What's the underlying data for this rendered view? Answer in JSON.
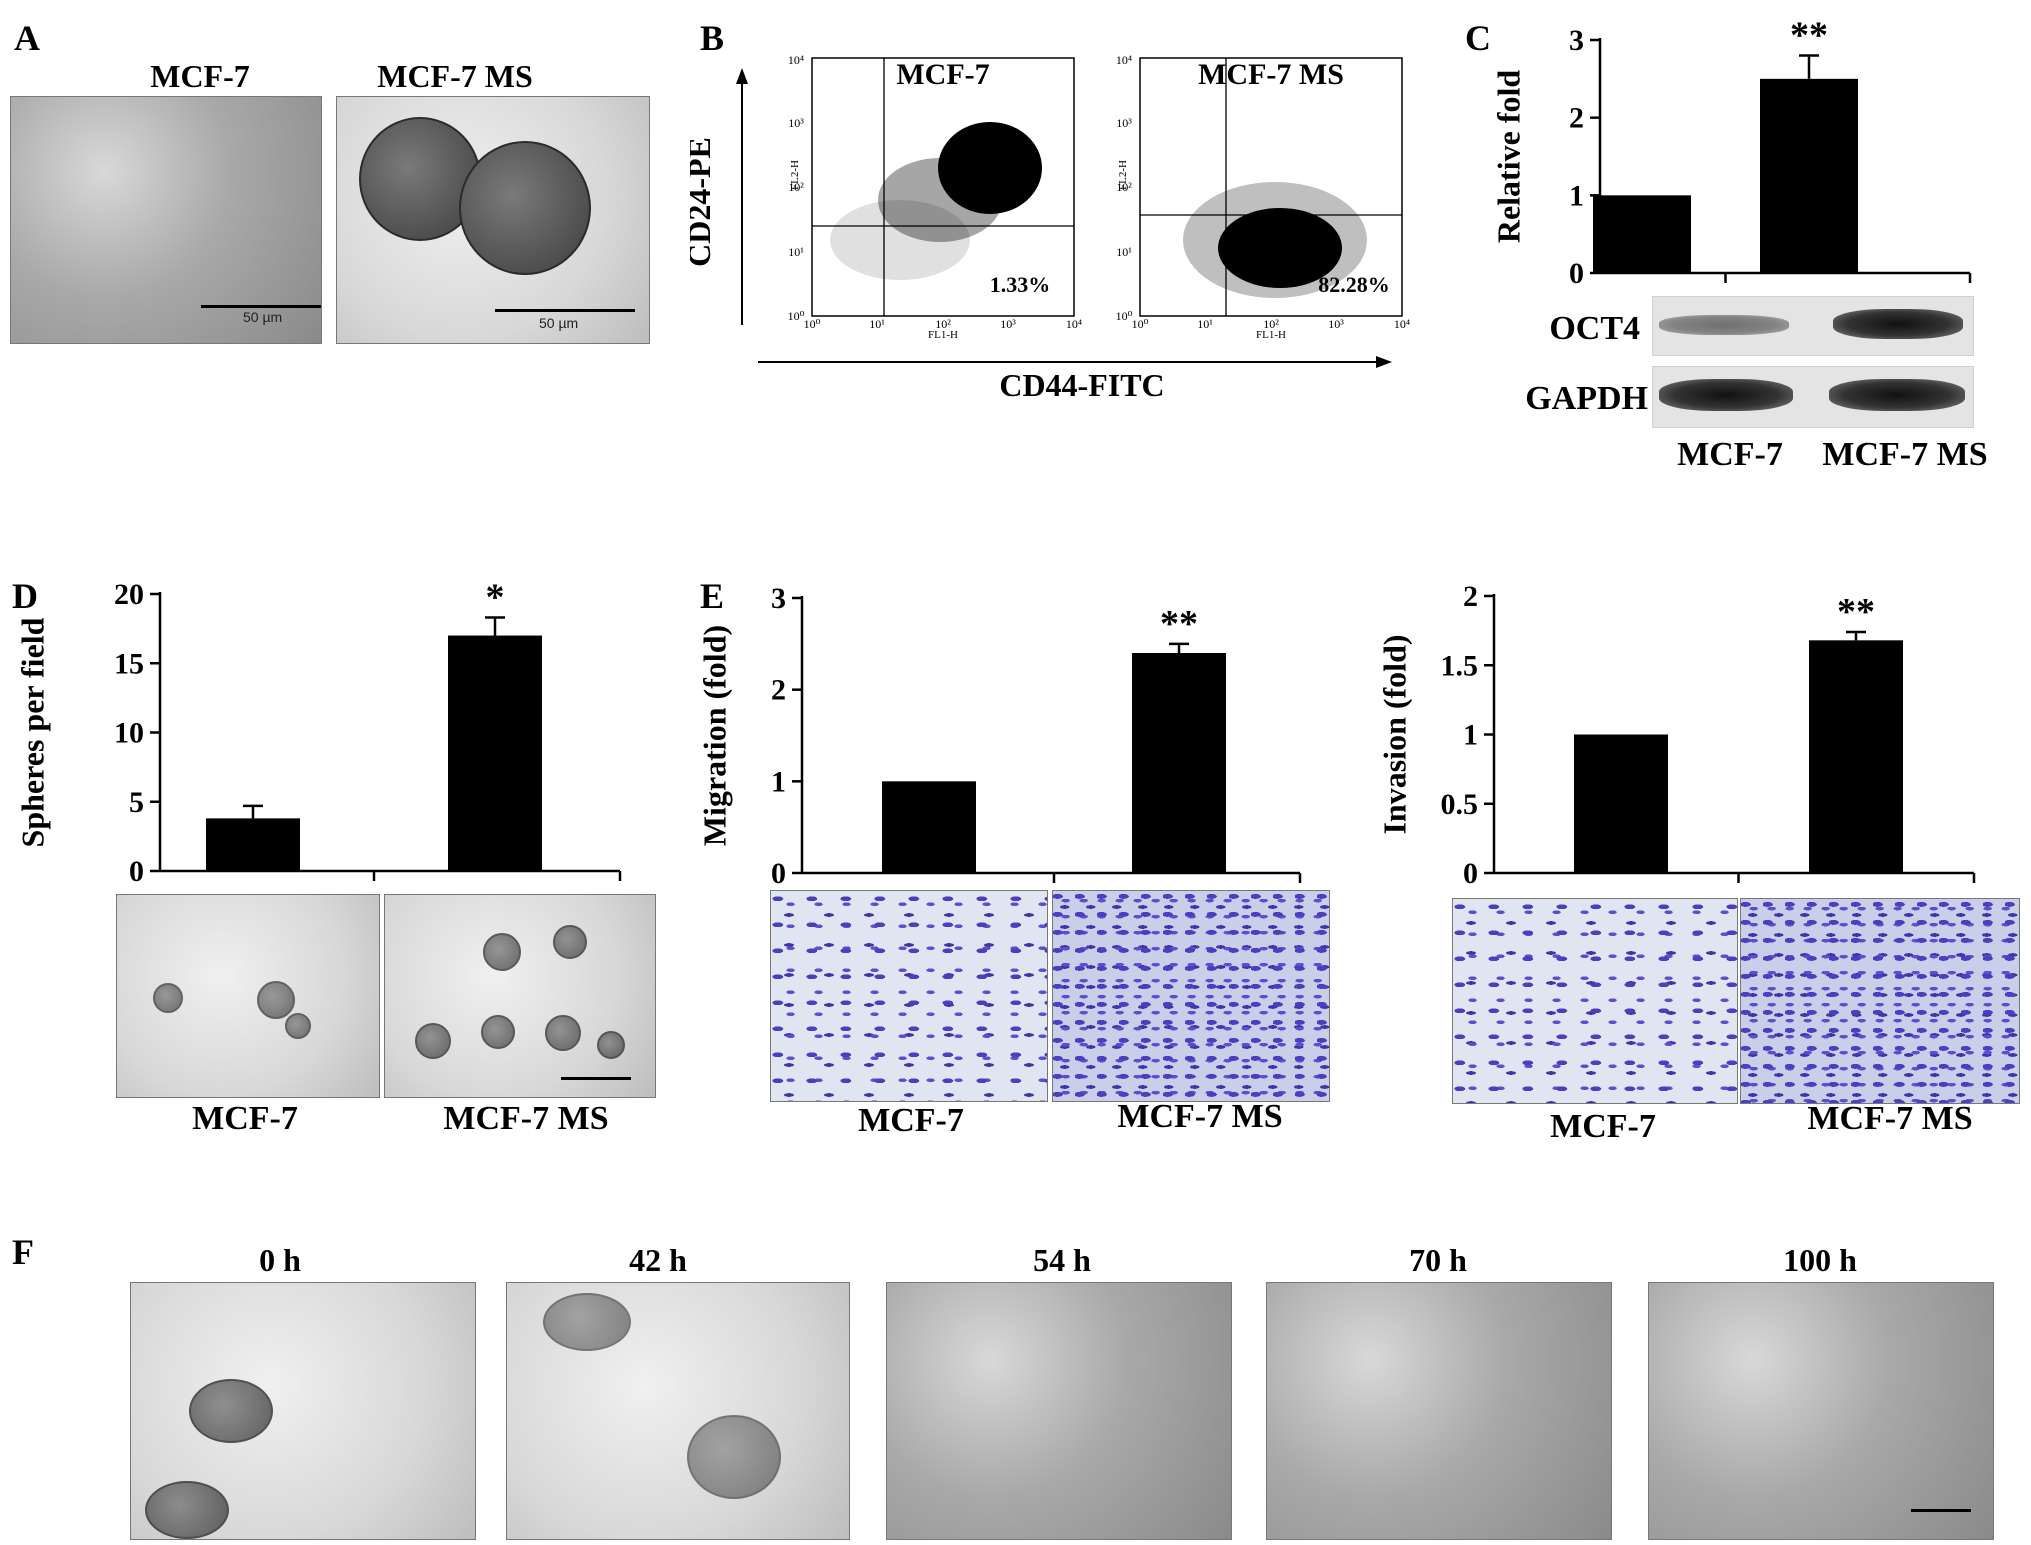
{
  "panels": {
    "A": {
      "label": "A",
      "titles": [
        "MCF-7",
        "MCF-7 MS"
      ],
      "scale_labels": [
        "50 µm",
        "50 µm"
      ]
    },
    "B": {
      "label": "B",
      "titles": [
        "MCF-7",
        "MCF-7 MS"
      ],
      "y_label": "CD24-PE",
      "x_label": "CD44-FITC",
      "plot_ylabel": "FL2-H",
      "plot_xlabel": "FL1-H",
      "percents": [
        "1.33%",
        "82.28%"
      ],
      "ticks": [
        "10⁰",
        "10¹",
        "10²",
        "10³",
        "10⁴"
      ]
    },
    "C": {
      "label": "C",
      "blot_rows": [
        "OCT4",
        "GAPDH"
      ],
      "captions": [
        "MCF-7",
        "MCF-7 MS"
      ]
    },
    "D": {
      "label": "D",
      "captions": [
        "MCF-7",
        "MCF-7 MS"
      ]
    },
    "E": {
      "label": "E",
      "captions_migration": [
        "MCF-7",
        "MCF-7 MS"
      ],
      "captions_invasion": [
        "MCF-7",
        "MCF-7 MS"
      ]
    },
    "F": {
      "label": "F",
      "timepoints": [
        "0 h",
        "42 h",
        "54 h",
        "70 h",
        "100 h"
      ]
    }
  },
  "chart_data": [
    {
      "id": "C",
      "type": "bar",
      "categories": [
        "MCF-7",
        "MCF-7 MS"
      ],
      "values": [
        1.0,
        2.5
      ],
      "errors": [
        0,
        0.3
      ],
      "annotations": [
        "",
        "**"
      ],
      "ylabel": "Relative fold",
      "ylim": [
        0,
        3
      ],
      "yticks": [
        0,
        1,
        2,
        3
      ]
    },
    {
      "id": "D",
      "type": "bar",
      "categories": [
        "MCF-7",
        "MCF-7 MS"
      ],
      "values": [
        3.8,
        17.0
      ],
      "errors": [
        0.9,
        1.3
      ],
      "annotations": [
        "",
        "*"
      ],
      "ylabel": "Spheres per field",
      "ylim": [
        0,
        20
      ],
      "yticks": [
        0,
        5,
        10,
        15,
        20
      ]
    },
    {
      "id": "E-migration",
      "type": "bar",
      "categories": [
        "MCF-7",
        "MCF-7 MS"
      ],
      "values": [
        1.0,
        2.4
      ],
      "errors": [
        0,
        0.1
      ],
      "annotations": [
        "",
        "**"
      ],
      "ylabel": "Migration (fold)",
      "ylim": [
        0,
        3
      ],
      "yticks": [
        0,
        1,
        2,
        3
      ]
    },
    {
      "id": "E-invasion",
      "type": "bar",
      "categories": [
        "MCF-7",
        "MCF-7 MS"
      ],
      "values": [
        1.0,
        1.68
      ],
      "errors": [
        0,
        0.06
      ],
      "annotations": [
        "",
        "**"
      ],
      "ylabel": "Invasion (fold)",
      "ylim": [
        0,
        2
      ],
      "yticks": [
        0,
        0.5,
        1,
        1.5,
        2
      ]
    }
  ]
}
